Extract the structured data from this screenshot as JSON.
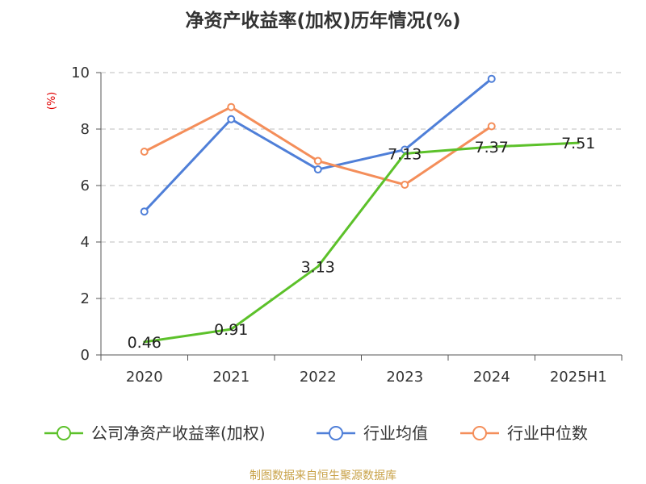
{
  "chart_data": {
    "type": "line",
    "title": "净资产收益率(加权)历年情况(%)",
    "unit_label": "(%)",
    "categories": [
      "2020",
      "2021",
      "2022",
      "2023",
      "2024",
      "2025H1"
    ],
    "y_ticks": [
      "0",
      "2",
      "4",
      "6",
      "8",
      "10"
    ],
    "ylim": [
      0,
      10
    ],
    "grid": "horizontal-dashed",
    "legend_position": "bottom",
    "series": [
      {
        "name": "公司净资产收益率(加权)",
        "color": "#5cc12a",
        "values": [
          0.46,
          0.91,
          3.13,
          7.13,
          7.37,
          7.51
        ],
        "labels": [
          "0.46",
          "0.91",
          "3.13",
          "7.13",
          "7.37",
          "7.51"
        ],
        "show_markers": false
      },
      {
        "name": "行业均值",
        "color": "#4f7fd8",
        "values": [
          5.08,
          8.35,
          6.57,
          7.27,
          9.78,
          null
        ],
        "show_markers": true
      },
      {
        "name": "行业中位数",
        "color": "#f48e5a",
        "values": [
          7.2,
          8.78,
          6.87,
          6.03,
          8.1,
          null
        ],
        "show_markers": true
      }
    ],
    "source": "制图数据来自恒生聚源数据库"
  }
}
